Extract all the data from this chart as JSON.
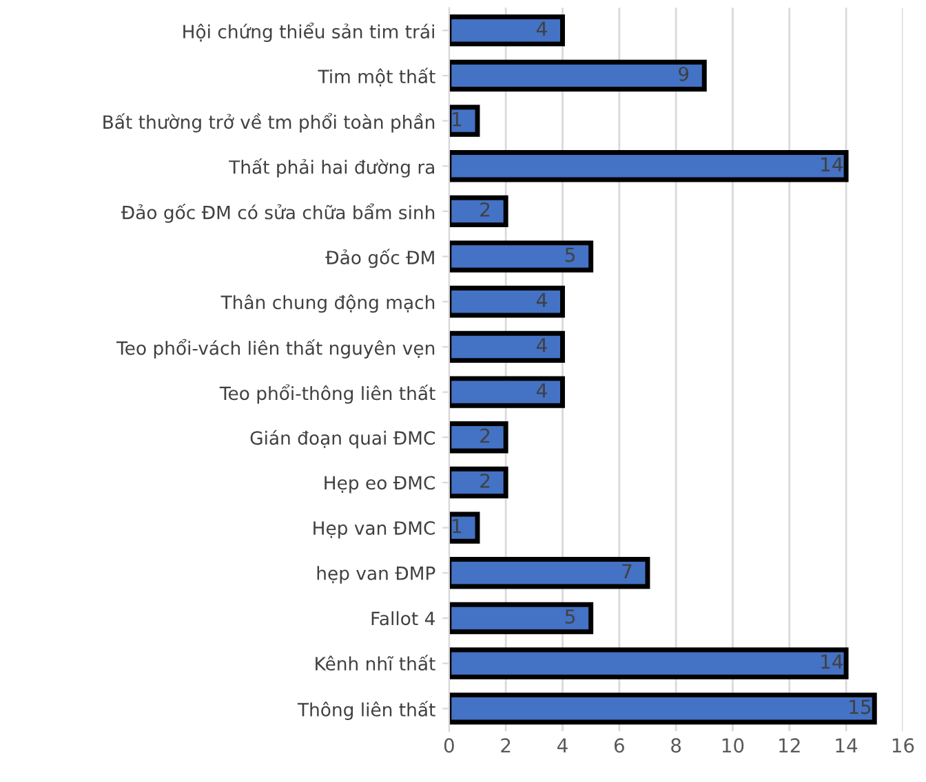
{
  "chart_data": {
    "type": "bar",
    "orientation": "horizontal",
    "categories": [
      "Hội chứng thiểu sản tim trái",
      "Tim một thất",
      "Bất thường trở về tm phổi toàn phần",
      "Thất phải hai đường ra",
      "Đảo gốc ĐM có sửa chữa bẩm sinh",
      "Đảo gốc ĐM",
      "Thân chung động mạch",
      "Teo phổi-vách liên thất nguyên vẹn",
      "Teo phổi-thông liên thất",
      "Gián đoạn quai ĐMC",
      "Hẹp eo ĐMC",
      "Hẹp van ĐMC",
      "hẹp van ĐMP",
      "Fallot 4",
      "Kênh nhĩ thất",
      "Thông liên thất"
    ],
    "values": [
      4,
      9,
      1,
      14,
      2,
      5,
      4,
      4,
      4,
      2,
      2,
      1,
      7,
      5,
      14,
      15
    ],
    "color": "#4472c4",
    "xlim": [
      0,
      16
    ],
    "xticks": [
      0,
      2,
      4,
      6,
      8,
      10,
      12,
      14,
      16
    ],
    "grid": "x",
    "data_labels": true
  }
}
